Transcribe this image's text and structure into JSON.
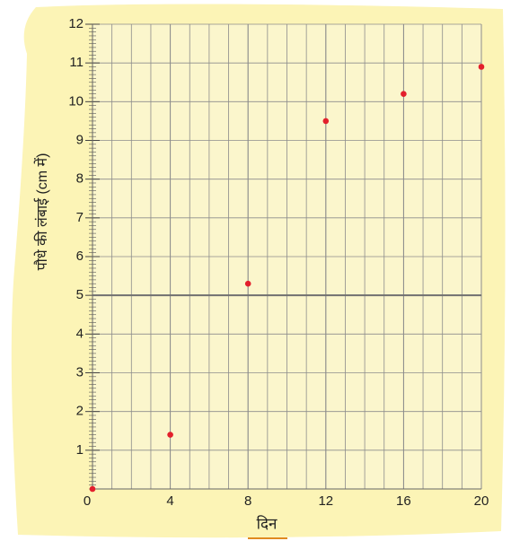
{
  "chart_data": {
    "type": "scatter",
    "xlabel": "दिन",
    "ylabel": "पौधे की लंबाई (cm में)",
    "x": [
      0,
      4,
      8,
      12,
      16,
      20
    ],
    "values": [
      0,
      1.4,
      5.3,
      9.5,
      10.2,
      10.9
    ],
    "color": "#e3202c",
    "xlim": [
      0,
      20
    ],
    "xticks": [
      0,
      4,
      8,
      12,
      16,
      20
    ],
    "ylim": [
      0,
      12
    ],
    "yticks": [
      1,
      2,
      3,
      4,
      5,
      6,
      7,
      8,
      9,
      10,
      11,
      12
    ],
    "grid": true,
    "hline": 5
  }
}
